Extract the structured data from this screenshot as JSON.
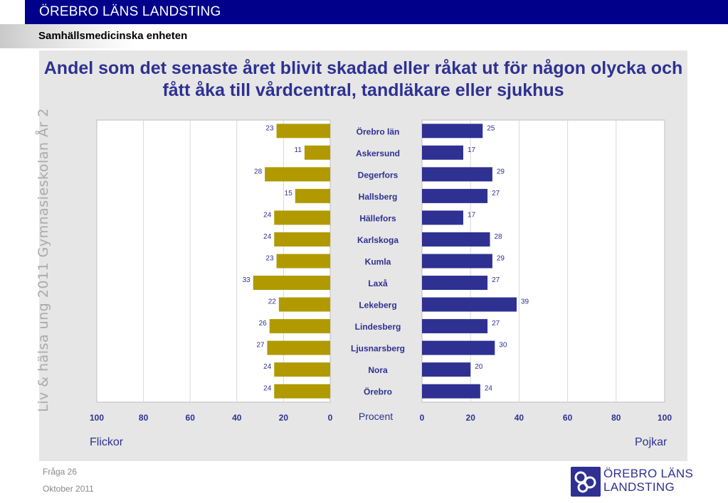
{
  "header": {
    "org_title": "ÖREBRO LÄNS LANDSTING",
    "subtitle": "Samhällsmedicinska enheten"
  },
  "side_text": "Liv & hälsa ung 2011 Gymnasieskolan År 2",
  "footer": {
    "question": "Fråga 26",
    "date": "Oktober 2011"
  },
  "logo": {
    "line1": "ÖREBRO LÄNS",
    "line2": "LANDSTING",
    "icon": "landsting-logo-icon"
  },
  "panel_labels": {
    "left": "Flickor",
    "right": "Pojkar"
  },
  "chart_data": {
    "type": "bar",
    "title": "Andel som det senaste året blivit skadad eller råkat ut för någon olycka och fått åka till vårdcentral, tandläkare eller sjukhus",
    "xlabel": "Procent",
    "categories": [
      "Örebro län",
      "Askersund",
      "Degerfors",
      "Hallsberg",
      "Hällefors",
      "Karlskoga",
      "Kumla",
      "Laxå",
      "Lekeberg",
      "Lindesberg",
      "Ljusnarsberg",
      "Nora",
      "Örebro"
    ],
    "series": [
      {
        "name": "Flickor",
        "color": "#b09a00",
        "values": [
          23,
          11,
          28,
          15,
          24,
          24,
          23,
          33,
          22,
          26,
          27,
          24,
          24
        ]
      },
      {
        "name": "Pojkar",
        "color": "#2e3192",
        "values": [
          25,
          17,
          29,
          27,
          17,
          28,
          29,
          27,
          39,
          27,
          30,
          20,
          24
        ]
      }
    ],
    "left_ticks": [
      "100",
      "80",
      "60",
      "40",
      "20",
      "0"
    ],
    "right_ticks": [
      "0",
      "20",
      "40",
      "60",
      "80",
      "100"
    ],
    "xlim": [
      0,
      100
    ],
    "grid": true
  }
}
